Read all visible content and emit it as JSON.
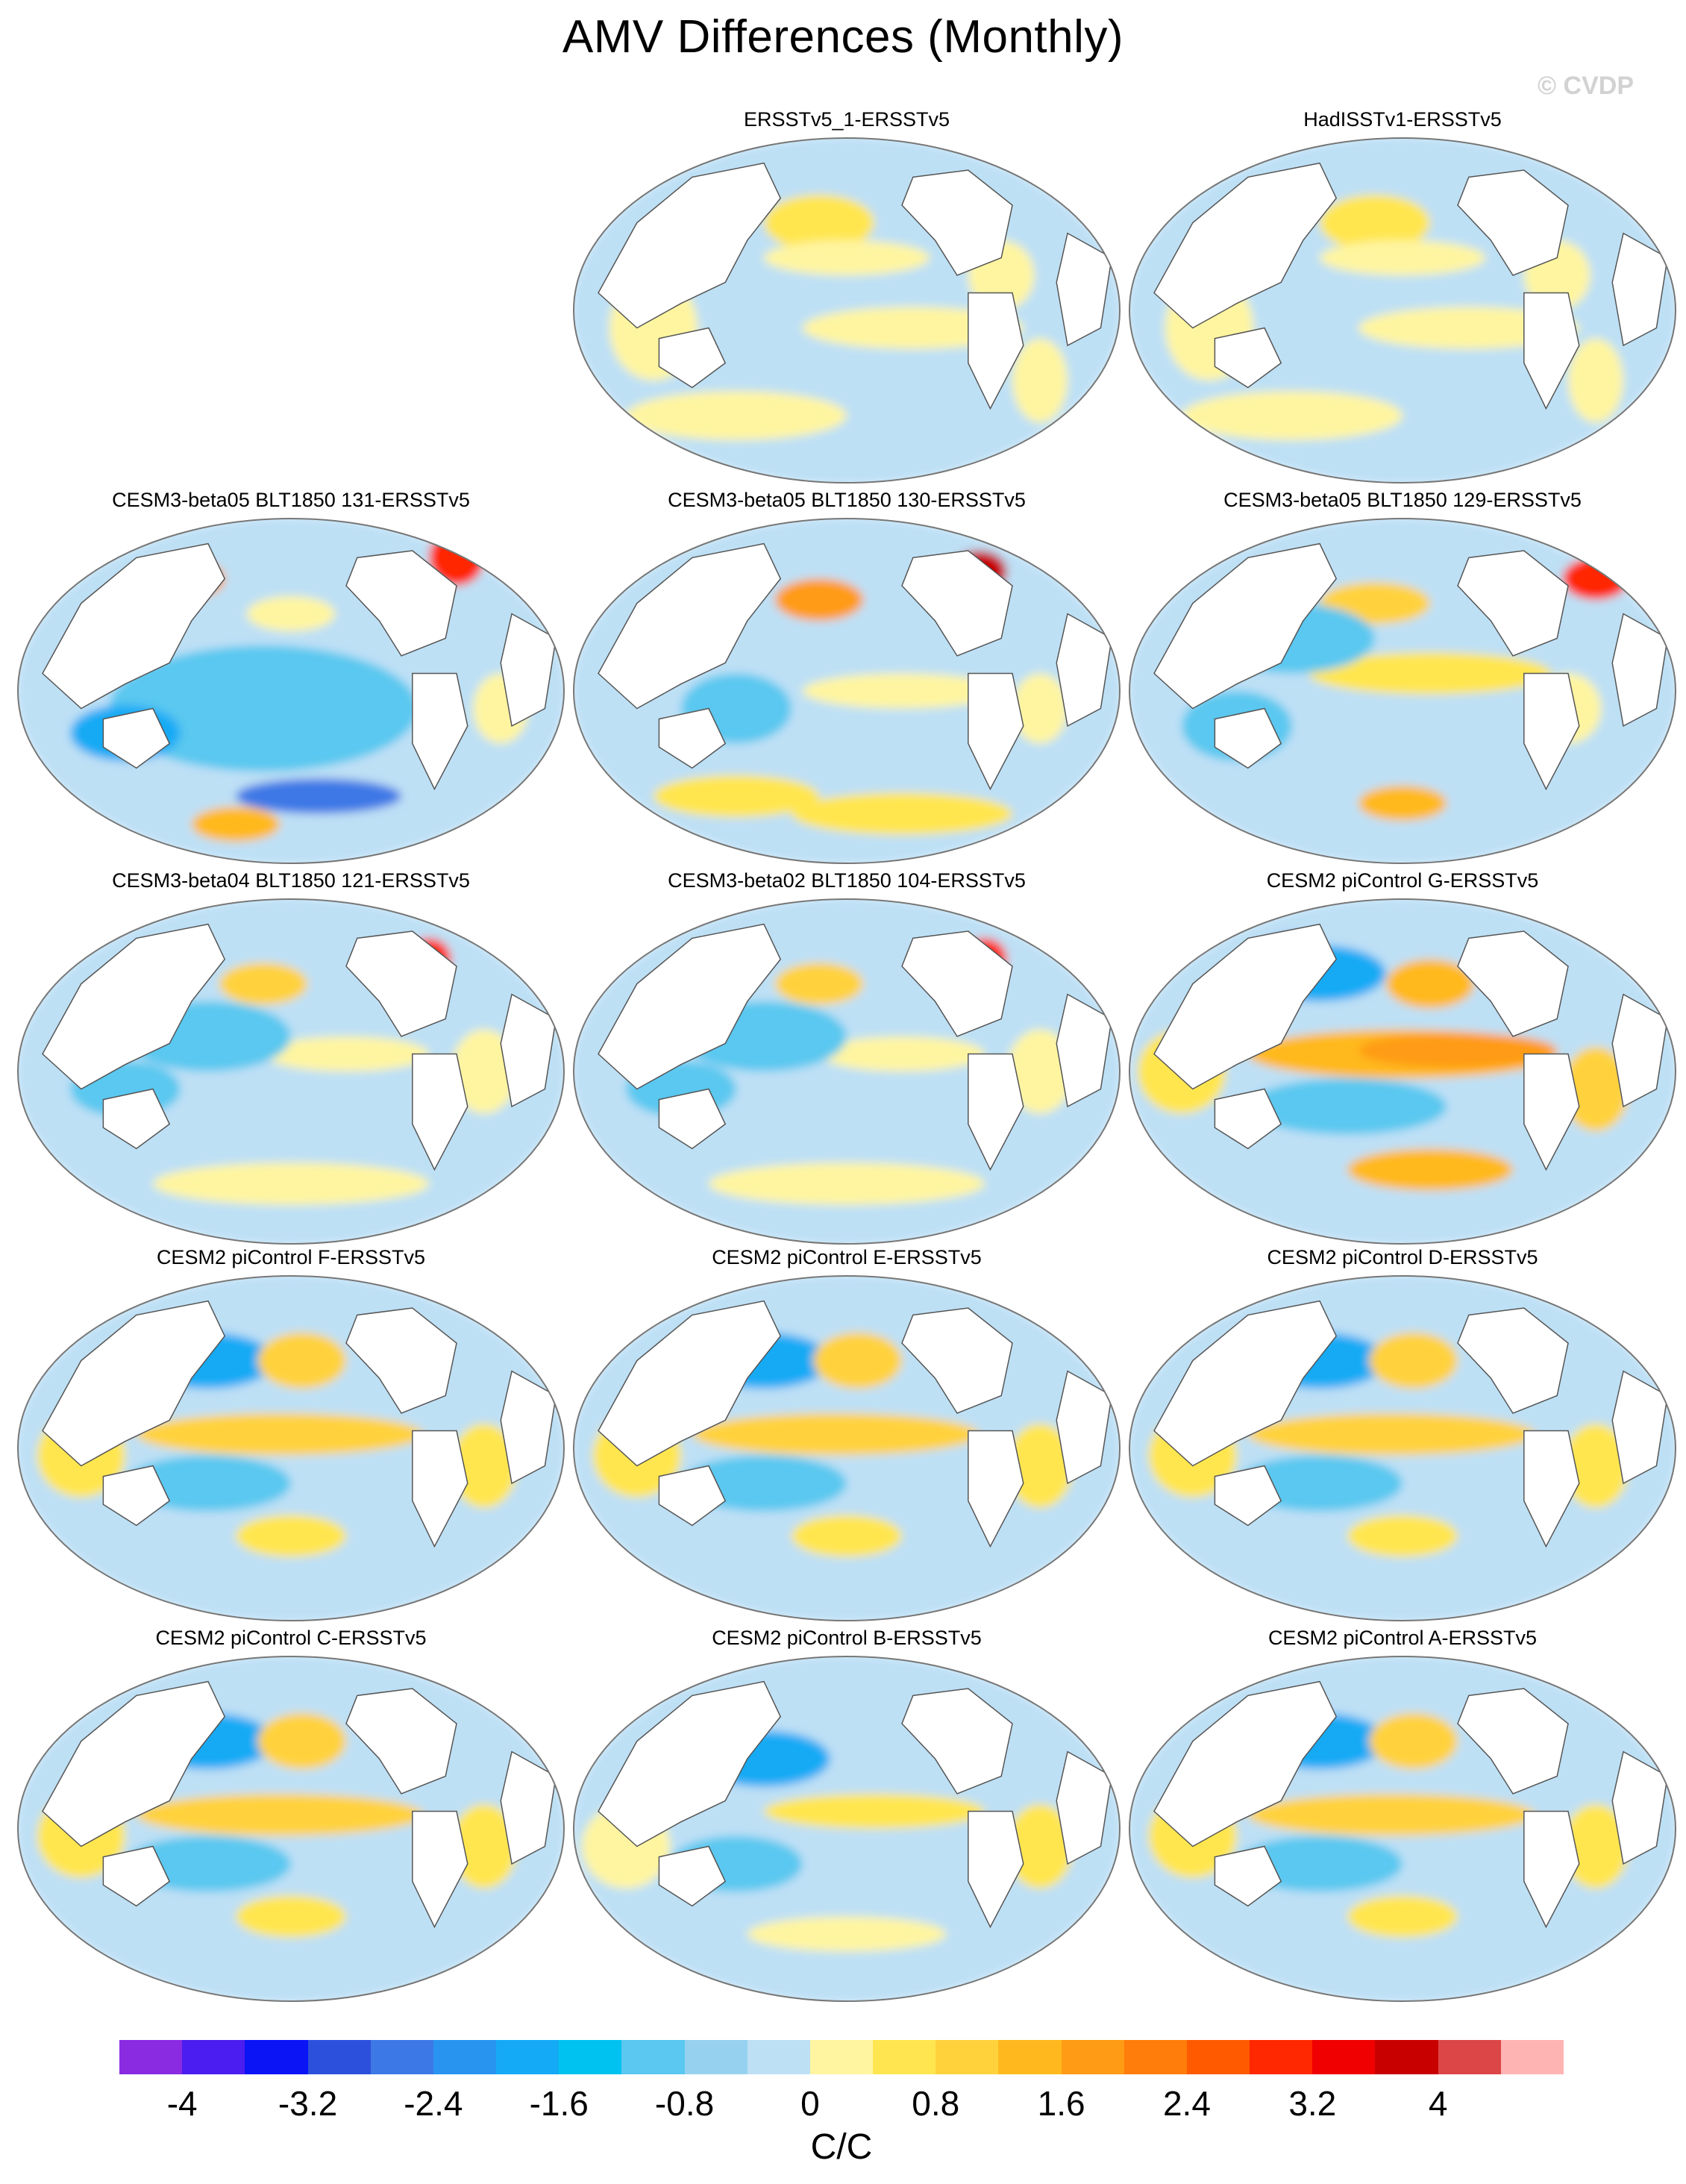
{
  "figure": {
    "title": "AMV Differences (Monthly)",
    "watermark": "© CVDP"
  },
  "panels": [
    {
      "title": "ERSSTv5_1-ERSSTv5",
      "pattern": "weak_mixed"
    },
    {
      "title": "HadISSTv1-ERSSTv5",
      "pattern": "weak_mixed"
    },
    {
      "title": "CESM3-beta05 BLT1850 131-ERSSTv5",
      "pattern": "cool_pacific_warm_arctic"
    },
    {
      "title": "CESM3-beta05 BLT1850 130-ERSSTv5",
      "pattern": "warm_npac_hotspot"
    },
    {
      "title": "CESM3-beta05 BLT1850 129-ERSSTv5",
      "pattern": "warm_tropical_tongue"
    },
    {
      "title": "CESM3-beta04 BLT1850 121-ERSSTv5",
      "pattern": "cool_mixed"
    },
    {
      "title": "CESM3-beta02 BLT1850 104-ERSSTv5",
      "pattern": "cool_mixed"
    },
    {
      "title": "CESM2 piControl G-ERSSTv5",
      "pattern": "strong_warm_tongue"
    },
    {
      "title": "CESM2 piControl F-ERSSTv5",
      "pattern": "warm_tongue"
    },
    {
      "title": "CESM2 piControl E-ERSSTv5",
      "pattern": "warm_tongue"
    },
    {
      "title": "CESM2 piControl D-ERSSTv5",
      "pattern": "warm_tongue"
    },
    {
      "title": "CESM2 piControl C-ERSSTv5",
      "pattern": "warm_tongue"
    },
    {
      "title": "CESM2 piControl B-ERSSTv5",
      "pattern": "weak_tongue"
    },
    {
      "title": "CESM2 piControl A-ERSSTv5",
      "pattern": "warm_tongue"
    }
  ],
  "colorbar": {
    "units": "C/C",
    "colors": [
      "#8a2be2",
      "#4b1df0",
      "#0a14f5",
      "#2d50dc",
      "#3c78e6",
      "#2894f0",
      "#14aaf5",
      "#00c2f0",
      "#5ac8f0",
      "#96d2f0",
      "#bee0f5",
      "#fff5a0",
      "#ffe650",
      "#ffd23c",
      "#ffb91e",
      "#ff9b14",
      "#ff7d0a",
      "#ff5a00",
      "#ff2800",
      "#f00000",
      "#c80000",
      "#dc4646",
      "#ffb4b4"
    ],
    "tick_labels": [
      "-4",
      "-3.2",
      "-2.4",
      "-1.6",
      "-0.8",
      "0",
      "0.8",
      "1.6",
      "2.4",
      "3.2",
      "4"
    ]
  }
}
